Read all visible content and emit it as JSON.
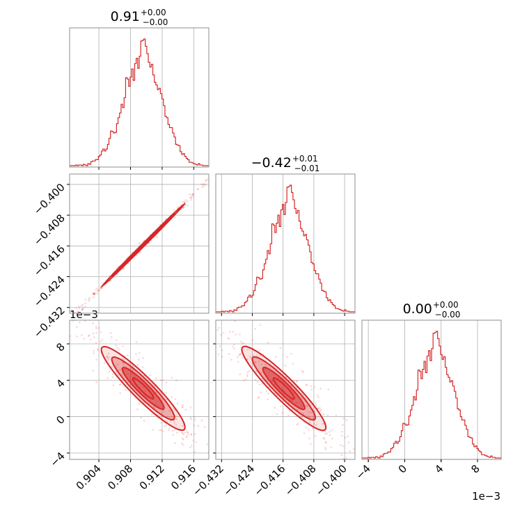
{
  "chart_data": {
    "type": "corner",
    "color": "#d62728",
    "grid": true,
    "parameters": [
      {
        "title": "0.91",
        "err_plus": "+0.00",
        "err_minus": "−0.00",
        "range": [
          0.9003,
          0.9179
        ],
        "ticks": [
          "0.904",
          "0.908",
          "0.912",
          "0.916"
        ],
        "tick_values": [
          0.904,
          0.908,
          0.912,
          0.916
        ],
        "mean": 0.9096,
        "sd": 0.0025,
        "hist_counts": [
          0,
          0,
          0,
          0,
          1,
          0,
          1,
          1,
          0,
          2,
          1,
          0,
          3,
          2,
          6,
          7,
          7,
          9,
          9,
          14,
          16,
          22,
          25,
          22,
          25,
          32,
          41,
          52,
          51,
          49,
          50,
          63,
          72,
          79,
          92,
          87,
          102,
          132,
          130,
          119,
          133,
          145,
          128,
          153,
          161,
          146,
          164,
          187,
          188,
          190,
          179,
          168,
          155,
          148,
          152,
          136,
          125,
          121,
          114,
          116,
          108,
          100,
          90,
          74,
          72,
          62,
          57,
          57,
          49,
          43,
          32,
          31,
          30,
          21,
          17,
          18,
          14,
          11,
          9,
          5,
          5,
          4,
          3,
          2,
          1,
          3,
          1,
          1,
          0,
          0,
          0,
          0
        ]
      },
      {
        "title": "−0.42",
        "err_plus": "+0.01",
        "err_minus": "−0.01",
        "range": [
          -0.4335,
          -0.3973
        ],
        "ticks": [
          "−0.432",
          "−0.424",
          "−0.416",
          "−0.408",
          "−0.400"
        ],
        "tick_values": [
          -0.432,
          -0.424,
          -0.416,
          -0.408,
          -0.4
        ],
        "mean": -0.4158,
        "sd": 0.0052,
        "hist_counts": [
          0,
          0,
          0,
          0,
          1,
          0,
          1,
          1,
          0,
          2,
          1,
          0,
          3,
          2,
          6,
          7,
          7,
          9,
          9,
          14,
          16,
          22,
          25,
          22,
          25,
          32,
          41,
          52,
          51,
          49,
          50,
          63,
          72,
          79,
          92,
          87,
          102,
          132,
          130,
          119,
          133,
          145,
          128,
          153,
          161,
          146,
          164,
          187,
          188,
          190,
          179,
          168,
          155,
          148,
          152,
          136,
          125,
          121,
          114,
          116,
          108,
          100,
          90,
          74,
          72,
          62,
          57,
          57,
          49,
          43,
          32,
          31,
          30,
          21,
          17,
          18,
          14,
          11,
          9,
          5,
          5,
          4,
          3,
          2,
          1,
          3,
          1,
          1,
          0,
          0,
          0,
          0
        ]
      },
      {
        "title": "0.00",
        "err_plus": "+0.00",
        "err_minus": "−0.00",
        "range": [
          -0.0047,
          0.0106
        ],
        "ticks": [
          "−4",
          "0",
          "4",
          "8"
        ],
        "tick_values": [
          -0.004,
          0,
          0.004,
          0.008
        ],
        "offset_label": "1e−3",
        "mean": 0.0031,
        "sd": 0.0022,
        "hist_counts": [
          0,
          0,
          0,
          0,
          1,
          0,
          1,
          1,
          0,
          2,
          1,
          0,
          3,
          2,
          6,
          7,
          7,
          9,
          9,
          14,
          16,
          22,
          25,
          22,
          25,
          32,
          41,
          52,
          51,
          49,
          50,
          63,
          72,
          79,
          92,
          87,
          102,
          132,
          130,
          119,
          133,
          145,
          128,
          153,
          161,
          146,
          164,
          187,
          188,
          190,
          179,
          168,
          155,
          148,
          152,
          136,
          125,
          121,
          114,
          116,
          108,
          100,
          90,
          74,
          72,
          62,
          57,
          57,
          49,
          43,
          32,
          31,
          30,
          21,
          17,
          18,
          14,
          11,
          9,
          5,
          5,
          4,
          3,
          2,
          1,
          3,
          1,
          1,
          0,
          0,
          0,
          0
        ]
      }
    ],
    "correlations": {
      "1,0": 0.999,
      "2,0": -0.93,
      "2,1": -0.93
    }
  }
}
